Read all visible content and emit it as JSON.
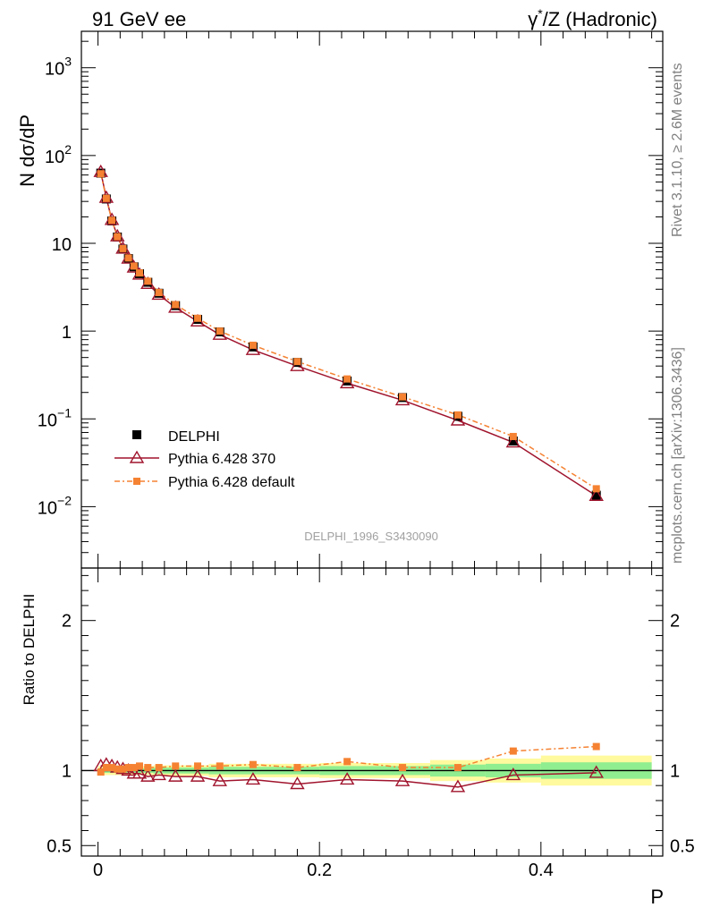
{
  "header": {
    "left": "91 GeV ee",
    "right_base": "γ",
    "right_sup": "*",
    "right_rest": "/Z (Hadronic)"
  },
  "side": {
    "top": "Rivet 3.1.10, ≥ 2.6M events",
    "bottom": "mcplots.cern.ch [arXiv:1306.3436]"
  },
  "watermark": "DELPHI_1996_S3430090",
  "colors": {
    "data": "#000000",
    "mc370": "#a0142d",
    "mcdefault": "#f58232",
    "band_inner": "#90ee90",
    "band_outer": "#fffa9e"
  },
  "chart_data": [
    {
      "type": "scatter",
      "ylabel": "N dσ/dP",
      "yscale": "log",
      "xlim": [
        -0.015,
        0.51
      ],
      "ylim": [
        0.002,
        2600
      ],
      "yticks": [
        {
          "value": 0.01,
          "base": "10",
          "exp": "−2"
        },
        {
          "value": 0.1,
          "base": "10",
          "exp": "−1"
        },
        {
          "value": 1,
          "base": "1",
          "exp": ""
        },
        {
          "value": 10,
          "base": "10",
          "exp": ""
        },
        {
          "value": 100,
          "base": "10",
          "exp": "2"
        },
        {
          "value": 1000,
          "base": "10",
          "exp": "3"
        }
      ],
      "legend": {
        "placement": "bottom-left",
        "entries": [
          "DELPHI",
          "Pythia 6.428 370",
          "Pythia 6.428 default"
        ]
      },
      "x": [
        0.0025,
        0.0075,
        0.0125,
        0.0175,
        0.0225,
        0.0275,
        0.0325,
        0.0375,
        0.045,
        0.055,
        0.07,
        0.09,
        0.11,
        0.14,
        0.18,
        0.225,
        0.275,
        0.325,
        0.375,
        0.45
      ],
      "series": [
        {
          "name": "DELPHI",
          "values": [
            63,
            32,
            18,
            11.8,
            8.6,
            6.7,
            5.4,
            4.5,
            3.6,
            2.7,
            1.95,
            1.36,
            0.98,
            0.66,
            0.44,
            0.27,
            0.175,
            0.107,
            0.056,
            0.0135
          ]
        },
        {
          "name": "Pythia 6.428 370",
          "values": [
            65,
            33,
            18.5,
            12,
            8.7,
            6.7,
            5.3,
            4.4,
            3.45,
            2.6,
            1.85,
            1.29,
            0.91,
            0.61,
            0.4,
            0.255,
            0.163,
            0.096,
            0.054,
            0.0133
          ]
        },
        {
          "name": "Pythia 6.428 default",
          "values": [
            62,
            32.5,
            18.3,
            11.9,
            8.7,
            6.8,
            5.5,
            4.6,
            3.7,
            2.75,
            2.0,
            1.4,
            1.0,
            0.69,
            0.45,
            0.285,
            0.178,
            0.111,
            0.063,
            0.016
          ]
        }
      ]
    },
    {
      "type": "line",
      "xlabel": "P",
      "ylabel": "Ratio to DELPHI",
      "ylim": [
        0.43,
        2.35
      ],
      "yticks": [
        0.5,
        1,
        2
      ],
      "xticks": [
        0,
        0.2,
        0.4
      ],
      "xticklabels": [
        "0",
        "0.2",
        "0.4"
      ],
      "yticklabels": [
        "0.5",
        "1",
        "2"
      ],
      "x": [
        0.0025,
        0.0075,
        0.0125,
        0.0175,
        0.0225,
        0.0275,
        0.0325,
        0.0375,
        0.045,
        0.055,
        0.07,
        0.09,
        0.11,
        0.14,
        0.18,
        0.225,
        0.275,
        0.325,
        0.375,
        0.45
      ],
      "series": [
        {
          "name": "Pythia 6.428 370",
          "values": [
            1.03,
            1.04,
            1.03,
            1.02,
            1.01,
            1.0,
            0.98,
            0.98,
            0.96,
            0.97,
            0.96,
            0.96,
            0.93,
            0.94,
            0.91,
            0.94,
            0.93,
            0.89,
            0.97,
            0.985
          ]
        },
        {
          "name": "Pythia 6.428 default",
          "values": [
            0.99,
            1.02,
            1.02,
            1.01,
            1.01,
            1.02,
            1.02,
            1.03,
            1.02,
            1.02,
            1.03,
            1.03,
            1.03,
            1.04,
            1.02,
            1.06,
            1.02,
            1.02,
            1.13,
            1.16
          ]
        }
      ],
      "bands": [
        {
          "x0": 0.0,
          "x1": 0.05,
          "inner": [
            0.985,
            1.015
          ],
          "outer": [
            0.97,
            1.03
          ]
        },
        {
          "x0": 0.05,
          "x1": 0.1,
          "inner": [
            0.98,
            1.02
          ],
          "outer": [
            0.965,
            1.035
          ]
        },
        {
          "x0": 0.1,
          "x1": 0.2,
          "inner": [
            0.975,
            1.025
          ],
          "outer": [
            0.955,
            1.045
          ]
        },
        {
          "x0": 0.2,
          "x1": 0.3,
          "inner": [
            0.97,
            1.03
          ],
          "outer": [
            0.95,
            1.05
          ]
        },
        {
          "x0": 0.3,
          "x1": 0.35,
          "inner": [
            0.96,
            1.04
          ],
          "outer": [
            0.93,
            1.07
          ]
        },
        {
          "x0": 0.35,
          "x1": 0.4,
          "inner": [
            0.955,
            1.045
          ],
          "outer": [
            0.92,
            1.08
          ]
        },
        {
          "x0": 0.4,
          "x1": 0.5,
          "inner": [
            0.945,
            1.055
          ],
          "outer": [
            0.9,
            1.1
          ]
        }
      ]
    }
  ]
}
